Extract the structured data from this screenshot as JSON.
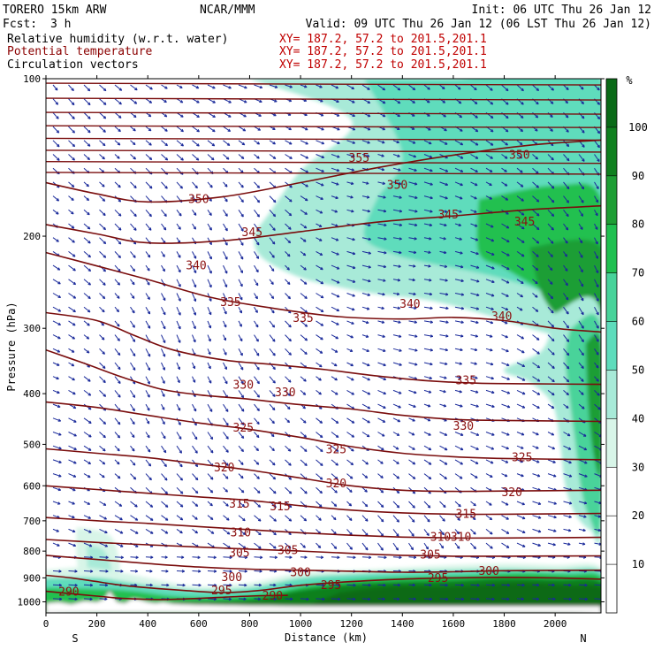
{
  "header": {
    "model": "TORERO  15km ARW",
    "org": "NCAR/MMM",
    "init": "Init: 06 UTC Thu 26 Jan 12",
    "fcst_label": "Fcst:",
    "fcst_value": "3 h",
    "valid": "Valid: 09 UTC Thu 26 Jan 12 (06 LST Thu 26 Jan 12)",
    "fields": [
      {
        "name": "Relative humidity (w.r.t. water)",
        "xy": "XY= 187.2, 57.2 to 201.5,201.1",
        "color": "#000000"
      },
      {
        "name": "Potential temperature",
        "xy": "XY= 187.2, 57.2 to 201.5,201.1",
        "color": "#8b0000"
      },
      {
        "name": "Circulation vectors",
        "xy": "XY= 187.2, 57.2 to 201.5,201.1",
        "color": "#000000"
      }
    ]
  },
  "chart_data": {
    "type": "cross-section",
    "xlabel": "Distance (km)",
    "ylabel": "Pressure (hPa)",
    "xlim": [
      0,
      2180
    ],
    "ylim": [
      100,
      1050
    ],
    "y_scale": "log",
    "x_ticks": [
      0,
      200,
      400,
      600,
      800,
      1000,
      1200,
      1400,
      1600,
      1800,
      2000
    ],
    "y_ticks": [
      100,
      200,
      300,
      400,
      500,
      600,
      700,
      800,
      900,
      1000
    ],
    "end_labels": {
      "left": "S",
      "right": "N"
    },
    "colorbar": {
      "unit": "%",
      "levels": [
        10,
        20,
        30,
        40,
        50,
        60,
        70,
        80,
        90,
        100
      ],
      "colors": [
        "#ffffff",
        "#ffffff",
        "#ffffff",
        "#d8f5e8",
        "#a8ead8",
        "#5edcbc",
        "#48d39a",
        "#20c050",
        "#1e9e34",
        "#10801f",
        "#0a6a18"
      ]
    },
    "theta_contours": [
      {
        "label": "350",
        "points": [
          [
            0,
            158
          ],
          [
            200,
            166
          ],
          [
            400,
            172
          ],
          [
            700,
            168
          ],
          [
            1000,
            158
          ],
          [
            1300,
            148
          ],
          [
            1600,
            140
          ],
          [
            1900,
            134
          ],
          [
            2180,
            131
          ]
        ]
      },
      {
        "label": "345",
        "points": [
          [
            0,
            190
          ],
          [
            200,
            198
          ],
          [
            400,
            206
          ],
          [
            700,
            204
          ],
          [
            1000,
            196
          ],
          [
            1300,
            188
          ],
          [
            1600,
            183
          ],
          [
            1900,
            178
          ],
          [
            2180,
            175
          ]
        ]
      },
      {
        "label": "340",
        "points": [
          [
            0,
            215
          ],
          [
            200,
            228
          ],
          [
            400,
            242
          ],
          [
            650,
            262
          ],
          [
            900,
            275
          ],
          [
            1150,
            285
          ],
          [
            1400,
            288
          ],
          [
            1600,
            286
          ],
          [
            1800,
            290
          ],
          [
            2000,
            300
          ],
          [
            2180,
            305
          ]
        ]
      },
      {
        "label": "335",
        "points": [
          [
            0,
            280
          ],
          [
            200,
            290
          ],
          [
            350,
            310
          ],
          [
            500,
            330
          ],
          [
            700,
            345
          ],
          [
            900,
            352
          ],
          [
            1100,
            360
          ],
          [
            1300,
            370
          ],
          [
            1500,
            378
          ],
          [
            1700,
            382
          ],
          [
            1900,
            383
          ],
          [
            2180,
            384
          ]
        ]
      },
      {
        "label": "330",
        "points": [
          [
            0,
            330
          ],
          [
            150,
            350
          ],
          [
            300,
            372
          ],
          [
            450,
            392
          ],
          [
            600,
            402
          ],
          [
            800,
            410
          ],
          [
            1000,
            420
          ],
          [
            1200,
            428
          ],
          [
            1400,
            440
          ],
          [
            1600,
            448
          ],
          [
            1800,
            450
          ],
          [
            2180,
            452
          ]
        ]
      },
      {
        "label": "325",
        "points": [
          [
            0,
            415
          ],
          [
            200,
            425
          ],
          [
            400,
            440
          ],
          [
            600,
            455
          ],
          [
            800,
            468
          ],
          [
            1000,
            485
          ],
          [
            1200,
            505
          ],
          [
            1400,
            520
          ],
          [
            1600,
            528
          ],
          [
            1800,
            532
          ],
          [
            2180,
            535
          ]
        ]
      },
      {
        "label": "320",
        "points": [
          [
            0,
            510
          ],
          [
            200,
            520
          ],
          [
            400,
            530
          ],
          [
            600,
            545
          ],
          [
            800,
            560
          ],
          [
            1000,
            580
          ],
          [
            1200,
            600
          ],
          [
            1400,
            612
          ],
          [
            1600,
            615
          ],
          [
            1800,
            614
          ],
          [
            2180,
            612
          ]
        ]
      },
      {
        "label": "315",
        "points": [
          [
            0,
            600
          ],
          [
            200,
            610
          ],
          [
            400,
            620
          ],
          [
            600,
            630
          ],
          [
            800,
            640
          ],
          [
            1000,
            655
          ],
          [
            1200,
            668
          ],
          [
            1400,
            676
          ],
          [
            1600,
            680
          ],
          [
            1800,
            680
          ],
          [
            2180,
            678
          ]
        ]
      },
      {
        "label": "310",
        "points": [
          [
            0,
            690
          ],
          [
            200,
            700
          ],
          [
            400,
            708
          ],
          [
            600,
            718
          ],
          [
            800,
            728
          ],
          [
            1000,
            738
          ],
          [
            1200,
            746
          ],
          [
            1400,
            752
          ],
          [
            1600,
            755
          ],
          [
            1800,
            755
          ],
          [
            2180,
            753
          ]
        ]
      },
      {
        "label": "305",
        "points": [
          [
            0,
            760
          ],
          [
            200,
            770
          ],
          [
            400,
            778
          ],
          [
            600,
            786
          ],
          [
            800,
            793
          ],
          [
            1000,
            800
          ],
          [
            1200,
            808
          ],
          [
            1400,
            815
          ],
          [
            1600,
            818
          ],
          [
            1800,
            818
          ],
          [
            2180,
            817
          ]
        ]
      },
      {
        "label": "300",
        "points": [
          [
            0,
            815
          ],
          [
            200,
            830
          ],
          [
            400,
            845
          ],
          [
            600,
            858
          ],
          [
            800,
            866
          ],
          [
            1000,
            870
          ],
          [
            1200,
            874
          ],
          [
            1400,
            878
          ],
          [
            1600,
            876
          ],
          [
            1800,
            872
          ],
          [
            2180,
            870
          ]
        ]
      },
      {
        "label": "295",
        "points": [
          [
            0,
            890
          ],
          [
            100,
            900
          ],
          [
            200,
            915
          ],
          [
            300,
            930
          ],
          [
            400,
            940
          ],
          [
            550,
            952
          ],
          [
            700,
            960
          ],
          [
            850,
            950
          ],
          [
            1000,
            930
          ],
          [
            1200,
            915
          ],
          [
            1400,
            905
          ],
          [
            1600,
            900
          ],
          [
            1800,
            898
          ],
          [
            2000,
            900
          ],
          [
            2180,
            905
          ]
        ]
      },
      {
        "label": "290",
        "points": [
          [
            0,
            955
          ],
          [
            100,
            965
          ],
          [
            200,
            975
          ],
          [
            300,
            985
          ],
          [
            450,
            990
          ],
          [
            600,
            985
          ],
          [
            800,
            975
          ],
          [
            950,
            972
          ]
        ]
      }
    ],
    "theta_labels": [
      {
        "text": "355",
        "x": 1230,
        "p": 142
      },
      {
        "text": "350",
        "x": 1860,
        "p": 140
      },
      {
        "text": "350",
        "x": 600,
        "p": 170
      },
      {
        "text": "350",
        "x": 1380,
        "p": 160
      },
      {
        "text": "345",
        "x": 810,
        "p": 197
      },
      {
        "text": "345",
        "x": 1580,
        "p": 182
      },
      {
        "text": "345",
        "x": 1880,
        "p": 188
      },
      {
        "text": "340",
        "x": 590,
        "p": 228
      },
      {
        "text": "340",
        "x": 1430,
        "p": 270
      },
      {
        "text": "340",
        "x": 1790,
        "p": 285
      },
      {
        "text": "335",
        "x": 725,
        "p": 268
      },
      {
        "text": "335",
        "x": 1010,
        "p": 287
      },
      {
        "text": "335",
        "x": 1650,
        "p": 378
      },
      {
        "text": "330",
        "x": 775,
        "p": 385
      },
      {
        "text": "330",
        "x": 940,
        "p": 398
      },
      {
        "text": "330",
        "x": 1640,
        "p": 462
      },
      {
        "text": "325",
        "x": 775,
        "p": 465
      },
      {
        "text": "325",
        "x": 1140,
        "p": 512
      },
      {
        "text": "325",
        "x": 1870,
        "p": 530
      },
      {
        "text": "320",
        "x": 700,
        "p": 555
      },
      {
        "text": "320",
        "x": 1140,
        "p": 595
      },
      {
        "text": "320",
        "x": 1830,
        "p": 618
      },
      {
        "text": "315",
        "x": 760,
        "p": 650
      },
      {
        "text": "315",
        "x": 920,
        "p": 658
      },
      {
        "text": "315",
        "x": 1650,
        "p": 680
      },
      {
        "text": "310",
        "x": 765,
        "p": 738
      },
      {
        "text": "310",
        "x": 1550,
        "p": 752
      },
      {
        "text": "310",
        "x": 1630,
        "p": 752
      },
      {
        "text": "305",
        "x": 760,
        "p": 808
      },
      {
        "text": "305",
        "x": 950,
        "p": 798
      },
      {
        "text": "305",
        "x": 1510,
        "p": 814
      },
      {
        "text": "300",
        "x": 730,
        "p": 898
      },
      {
        "text": "300",
        "x": 1000,
        "p": 880
      },
      {
        "text": "300",
        "x": 1740,
        "p": 874
      },
      {
        "text": "295",
        "x": 690,
        "p": 952
      },
      {
        "text": "295",
        "x": 1120,
        "p": 930
      },
      {
        "text": "295",
        "x": 1540,
        "p": 902
      },
      {
        "text": "290",
        "x": 90,
        "p": 958
      },
      {
        "text": "290",
        "x": 890,
        "p": 975
      }
    ]
  }
}
